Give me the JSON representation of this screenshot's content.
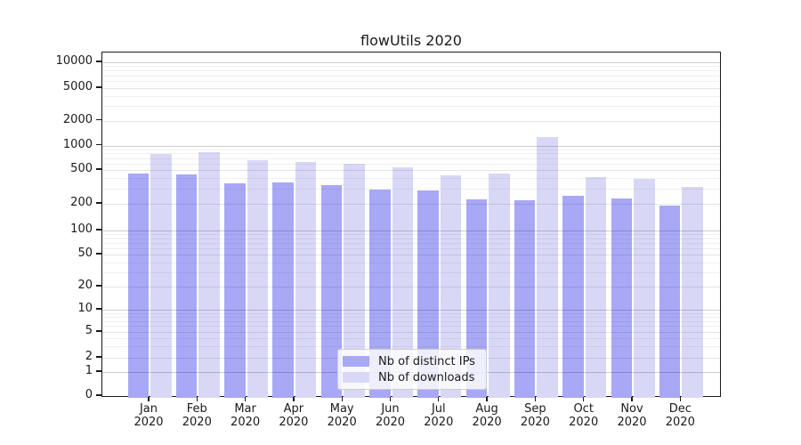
{
  "chart_data": {
    "type": "bar",
    "title": "flowUtils 2020",
    "categories": [
      "Jan",
      "Feb",
      "Mar",
      "Apr",
      "May",
      "Jun",
      "Jul",
      "Aug",
      "Sep",
      "Oct",
      "Nov",
      "Dec"
    ],
    "year": "2020",
    "series": [
      {
        "name": "Nb of distinct IPs",
        "color": "#a8a8f6",
        "values": [
          450,
          445,
          350,
          360,
          330,
          295,
          290,
          225,
          222,
          248,
          230,
          192
        ]
      },
      {
        "name": "Nb of downloads",
        "color": "#d8d8f6",
        "values": [
          790,
          830,
          660,
          620,
          590,
          545,
          430,
          455,
          1250,
          415,
          392,
          318
        ]
      }
    ],
    "y_axis": {
      "scale": "symlog",
      "ticks": [
        0,
        1,
        2,
        5,
        10,
        20,
        50,
        100,
        200,
        500,
        1000,
        2000,
        5000,
        10000
      ],
      "grid": true
    },
    "legend": {
      "position": "lower-center",
      "items": [
        "Nb of distinct IPs",
        "Nb of downloads"
      ]
    }
  }
}
